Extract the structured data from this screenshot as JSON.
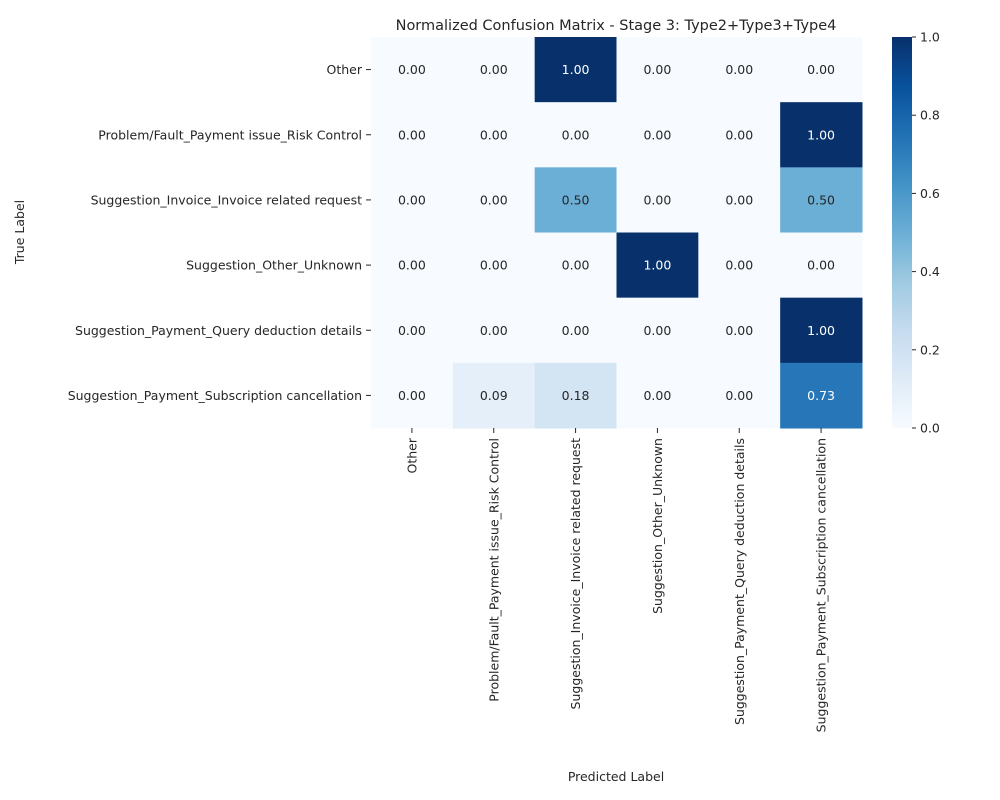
{
  "chart_data": {
    "type": "heatmap",
    "title": "Normalized Confusion Matrix - Stage 3: Type2+Type3+Type4",
    "xlabel": "Predicted Label",
    "ylabel": "True Label",
    "row_labels": [
      "Other",
      "Problem/Fault_Payment issue_Risk Control",
      "Suggestion_Invoice_Invoice related request",
      "Suggestion_Other_Unknown",
      "Suggestion_Payment_Query deduction details",
      "Suggestion_Payment_Subscription cancellation"
    ],
    "col_labels": [
      "Other",
      "Problem/Fault_Payment issue_Risk Control",
      "Suggestion_Invoice_Invoice related request",
      "Suggestion_Other_Unknown",
      "Suggestion_Payment_Query deduction details",
      "Suggestion_Payment_Subscription cancellation"
    ],
    "values": [
      [
        0.0,
        0.0,
        1.0,
        0.0,
        0.0,
        0.0
      ],
      [
        0.0,
        0.0,
        0.0,
        0.0,
        0.0,
        1.0
      ],
      [
        0.0,
        0.0,
        0.5,
        0.0,
        0.0,
        0.5
      ],
      [
        0.0,
        0.0,
        0.0,
        1.0,
        0.0,
        0.0
      ],
      [
        0.0,
        0.0,
        0.0,
        0.0,
        0.0,
        1.0
      ],
      [
        0.0,
        0.09,
        0.18,
        0.0,
        0.0,
        0.73
      ]
    ],
    "value_format": "0.00",
    "colormap": "Blues",
    "colormap_stops": [
      "#f7fbff",
      "#deebf7",
      "#c6dbef",
      "#9ecae1",
      "#6baed6",
      "#4292c6",
      "#2171b5",
      "#08519c",
      "#08306b"
    ],
    "colorbar": {
      "range": [
        0.0,
        1.0
      ],
      "ticks": [
        "0.0",
        "0.2",
        "0.4",
        "0.6",
        "0.8",
        "1.0"
      ]
    },
    "grid": false,
    "legend": "colorbar-right"
  }
}
